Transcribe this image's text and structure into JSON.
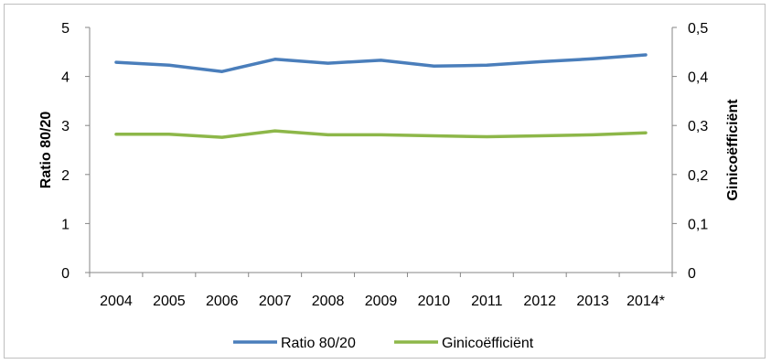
{
  "chart_data": {
    "type": "line",
    "categories": [
      "2004",
      "2005",
      "2006",
      "2007",
      "2008",
      "2009",
      "2010",
      "2011",
      "2012",
      "2013",
      "2014*"
    ],
    "series": [
      {
        "name": "Ratio 80/20",
        "axis": "left",
        "color": "#4a7ebb",
        "values": [
          4.29,
          4.23,
          4.1,
          4.35,
          4.27,
          4.33,
          4.21,
          4.23,
          4.3,
          4.36,
          4.44
        ]
      },
      {
        "name": "Ginicoëfficiënt",
        "axis": "right",
        "color": "#8db749",
        "values": [
          0.282,
          0.282,
          0.276,
          0.289,
          0.281,
          0.281,
          0.279,
          0.277,
          0.279,
          0.281,
          0.285
        ]
      }
    ],
    "ylabel": "Ratio 80/20",
    "y2label": "Ginicoëfficiënt",
    "ylim": [
      0,
      5
    ],
    "y2lim": [
      0,
      0.5
    ],
    "yticks": [
      "0",
      "1",
      "2",
      "3",
      "4",
      "5"
    ],
    "y2ticks": [
      "0",
      "0,1",
      "0,2",
      "0,3",
      "0,4",
      "0,5"
    ],
    "grid": false,
    "legend_position": "bottom"
  }
}
